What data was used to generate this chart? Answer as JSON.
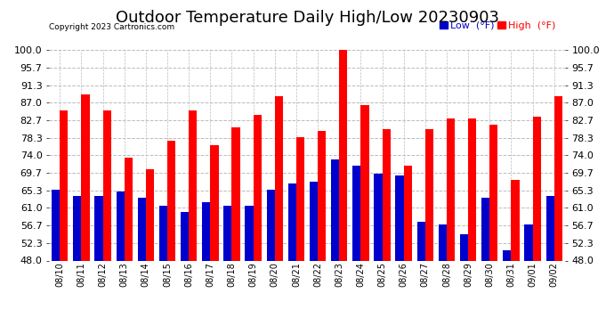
{
  "title": "Outdoor Temperature Daily High/Low 20230903",
  "copyright": "Copyright 2023 Cartronics.com",
  "legend_low_label": "Low  (°F)",
  "legend_high_label": "High  (°F)",
  "dates": [
    "08/10",
    "08/11",
    "08/12",
    "08/13",
    "08/14",
    "08/15",
    "08/16",
    "08/17",
    "08/18",
    "08/19",
    "08/20",
    "08/21",
    "08/22",
    "08/23",
    "08/24",
    "08/25",
    "08/26",
    "08/27",
    "08/28",
    "08/29",
    "08/30",
    "08/31",
    "09/01",
    "09/02"
  ],
  "highs": [
    85.0,
    89.0,
    85.0,
    73.5,
    70.5,
    77.5,
    85.0,
    76.5,
    81.0,
    84.0,
    88.5,
    78.5,
    80.0,
    100.0,
    86.5,
    80.5,
    71.5,
    80.5,
    83.0,
    83.0,
    81.5,
    68.0,
    83.5,
    88.5
  ],
  "lows": [
    65.5,
    64.0,
    64.0,
    65.0,
    63.5,
    61.5,
    60.0,
    62.5,
    61.5,
    61.5,
    65.5,
    67.0,
    67.5,
    73.0,
    71.5,
    69.5,
    69.0,
    57.5,
    57.0,
    54.5,
    63.5,
    50.5,
    57.0,
    64.0
  ],
  "ylim_min": 48.0,
  "ylim_max": 100.0,
  "yticks": [
    48.0,
    52.3,
    56.7,
    61.0,
    65.3,
    69.7,
    74.0,
    78.3,
    82.7,
    87.0,
    91.3,
    95.7,
    100.0
  ],
  "high_color": "#ff0000",
  "low_color": "#0000cc",
  "background_color": "#ffffff",
  "grid_color": "#bbbbbb",
  "title_fontsize": 13,
  "tick_fontsize": 8,
  "bar_width": 0.38,
  "legend_low_color": "#0000cc",
  "legend_high_color": "#ff0000"
}
